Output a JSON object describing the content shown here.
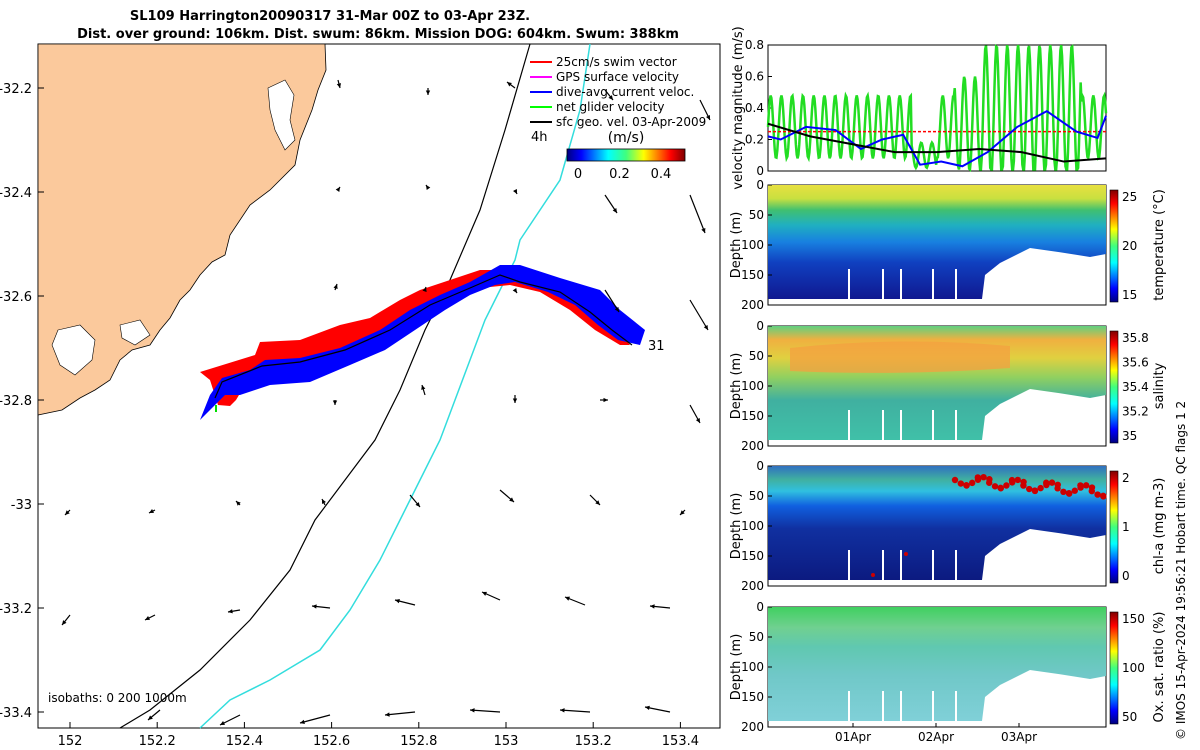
{
  "title_line1": "SL109 Harrington20090317 31-Mar 00Z to 03-Apr 23Z.",
  "title_line2": "Dist. over ground: 106km. Dist. swum: 86km. Mission DOG: 604km. Swum: 388km",
  "map": {
    "legend": [
      {
        "label": "25cm/s swim vector",
        "color": "#ff0000"
      },
      {
        "label": "GPS surface velocity",
        "color": "#ff00ff"
      },
      {
        "label": "dive-avg current veloc.",
        "color": "#0000ff"
      },
      {
        "label": "net glider velocity",
        "color": "#00ff00"
      },
      {
        "label": "sfc geo. vel. 03-Apr-2009",
        "color": "#000000"
      }
    ],
    "colorbar_title": "(m/s)",
    "colorbar_ticks": [
      "0",
      "0.2",
      "0.4"
    ],
    "label_4h": "4h",
    "label_31": "31",
    "isobaths_text": "isobaths: 0   200  1000m",
    "lon_ticks": [
      "152",
      "152.2",
      "152.4",
      "152.6",
      "152.8",
      "153",
      "153.2",
      "153.4"
    ],
    "lat_ticks": [
      "-32.2",
      "-32.4",
      "-32.6",
      "-32.8",
      "-33",
      "-33.2",
      "-33.4"
    ],
    "land_color": "#fbc99c"
  },
  "chart_data": [
    {
      "type": "line",
      "title": "",
      "ylabel": "velocity magnitude (m/s)",
      "ylim": [
        0,
        0.8
      ],
      "yticks": [
        "0",
        "0.2",
        "0.4",
        "0.6",
        "0.8"
      ],
      "xlim": [
        0,
        4
      ],
      "series": [
        {
          "name": "swim speed",
          "color": "#ff0000",
          "x": [
            0,
            4
          ],
          "values": [
            0.25,
            0.25
          ]
        },
        {
          "name": "dive-avg current",
          "color": "#0000ff",
          "x": [
            0,
            0.15,
            0.45,
            0.8,
            1.1,
            1.35,
            1.6,
            1.8,
            2.05,
            2.3,
            2.6,
            2.95,
            3.3,
            3.65,
            3.9,
            4.0
          ],
          "values": [
            0.22,
            0.2,
            0.28,
            0.26,
            0.14,
            0.2,
            0.23,
            0.04,
            0.06,
            0.03,
            0.12,
            0.28,
            0.38,
            0.25,
            0.21,
            0.35
          ]
        },
        {
          "name": "surface geostrophic",
          "color": "#000000",
          "x": [
            0,
            0.5,
            1.0,
            1.5,
            2.0,
            2.5,
            3.0,
            3.5,
            4.0
          ],
          "values": [
            0.3,
            0.22,
            0.17,
            0.12,
            0.12,
            0.14,
            0.12,
            0.06,
            0.08
          ]
        },
        {
          "name": "net glider velocity",
          "color": "#00ff00",
          "values": []
        }
      ]
    },
    {
      "type": "heatmap",
      "ylabel": "Depth (m)",
      "cbar_label": "temperature (°C)",
      "cbar_ticks": [
        "15",
        "20",
        "25"
      ],
      "yticks": [
        "0",
        "50",
        "100",
        "150",
        "200"
      ]
    },
    {
      "type": "heatmap",
      "ylabel": "Depth (m)",
      "cbar_label": "salinity",
      "cbar_ticks": [
        "35",
        "35.2",
        "35.4",
        "35.6",
        "35.8"
      ],
      "yticks": [
        "0",
        "50",
        "100",
        "150",
        "200"
      ]
    },
    {
      "type": "heatmap",
      "ylabel": "Depth (m)",
      "cbar_label": "chl-a (mg m-3)",
      "cbar_ticks": [
        "0",
        "1",
        "2"
      ],
      "yticks": [
        "0",
        "50",
        "100",
        "150",
        "200"
      ]
    },
    {
      "type": "heatmap",
      "ylabel": "Depth (m)",
      "cbar_label": "Ox. sat. ratio (%)",
      "cbar_ticks": [
        "50",
        "100",
        "150"
      ],
      "yticks": [
        "0",
        "50",
        "100",
        "150",
        "200"
      ],
      "xticks": [
        "01Apr",
        "02Apr",
        "03Apr"
      ]
    }
  ],
  "side_text": "© IMOS 15-Apr-2024 19:56:21 Hobart time. QC flags 1  2"
}
